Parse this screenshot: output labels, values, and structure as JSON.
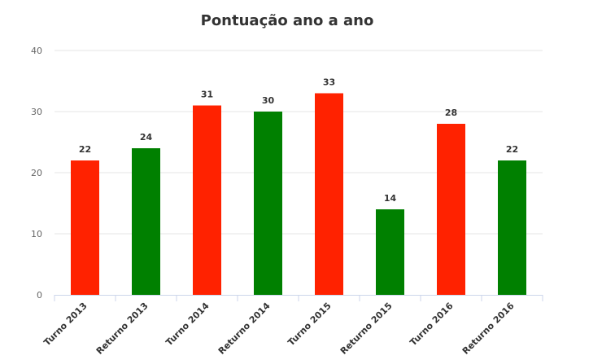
{
  "chart_data": {
    "type": "bar",
    "title": "Pontuação ano a ano",
    "categories": [
      "Turno 2013",
      "Returno 2013",
      "Turno 2014",
      "Returno 2014",
      "Turno 2015",
      "Returno 2015",
      "Turno 2016",
      "Returno 2016"
    ],
    "values": [
      22,
      24,
      31,
      30,
      33,
      14,
      28,
      22
    ],
    "colors": [
      "#ff2200",
      "#008000",
      "#ff2200",
      "#008000",
      "#ff2200",
      "#008000",
      "#ff2200",
      "#008000"
    ],
    "ylim": [
      0,
      40
    ],
    "yticks": [
      0,
      10,
      20,
      30,
      40
    ],
    "grid": true,
    "data_labels": true,
    "legend": "none"
  }
}
